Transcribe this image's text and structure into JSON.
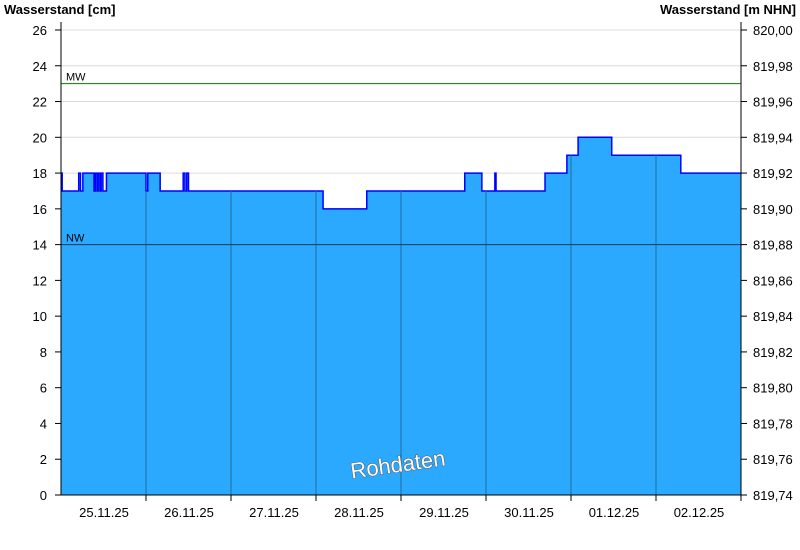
{
  "chart_data": {
    "type": "area",
    "ylabel_left": "Wasserstand [cm]",
    "ylabel_right": "Wasserstand [m NHN]",
    "ylim": [
      0,
      26
    ],
    "yticks_left": [
      "0",
      "2",
      "4",
      "6",
      "8",
      "10",
      "12",
      "14",
      "16",
      "18",
      "20",
      "22",
      "24",
      "26"
    ],
    "yticks_right": [
      "819,74",
      "819,76",
      "819,78",
      "819,80",
      "819,82",
      "819,84",
      "819,86",
      "819,88",
      "819,90",
      "819,92",
      "819,94",
      "819,96",
      "819,98",
      "820,00"
    ],
    "xticks": [
      "25.11.25",
      "26.11.25",
      "27.11.25",
      "28.11.25",
      "29.11.25",
      "30.11.25",
      "01.12.25",
      "02.12.25"
    ],
    "xrange": [
      "25.11 00:00",
      "03.12 00:00"
    ],
    "grid": true,
    "reference_lines": [
      {
        "label": "MW",
        "value": 23,
        "color": "#008000"
      },
      {
        "label": "NW",
        "value": 14,
        "color": "#1a3a5a"
      }
    ],
    "watermark": "Rohdaten",
    "fill_color": "#2aa9ff",
    "line_color": "#0000ff",
    "series": [
      {
        "values": [
          [
            "25.11 00:00",
            18
          ],
          [
            "25.11 00:20",
            17
          ],
          [
            "25.11 05:00",
            18
          ],
          [
            "25.11 05:30",
            17
          ],
          [
            "25.11 06:10",
            18
          ],
          [
            "25.11 09:20",
            17
          ],
          [
            "25.11 09:40",
            18
          ],
          [
            "25.11 10:10",
            17
          ],
          [
            "25.11 10:30",
            18
          ],
          [
            "25.11 11:00",
            17
          ],
          [
            "25.11 11:20",
            18
          ],
          [
            "25.11 11:50",
            17
          ],
          [
            "25.11 12:50",
            18
          ],
          [
            "26.11 00:00",
            17
          ],
          [
            "26.11 00:30",
            18
          ],
          [
            "26.11 04:00",
            17
          ],
          [
            "26.11 10:30",
            18
          ],
          [
            "26.11 11:00",
            17
          ],
          [
            "26.11 11:30",
            18
          ],
          [
            "26.11 12:00",
            17
          ],
          [
            "28.11 02:00",
            16
          ],
          [
            "28.11 14:20",
            17
          ],
          [
            "29.11 18:00",
            18
          ],
          [
            "29.11 22:50",
            17
          ],
          [
            "30.11 02:30",
            18
          ],
          [
            "30.11 02:50",
            17
          ],
          [
            "30.11 16:40",
            18
          ],
          [
            "30.11 22:50",
            19
          ],
          [
            "01.12 02:00",
            20
          ],
          [
            "01.12 11:30",
            19
          ],
          [
            "02.12 07:00",
            18
          ],
          [
            "03.12 00:00",
            18
          ]
        ]
      }
    ]
  }
}
